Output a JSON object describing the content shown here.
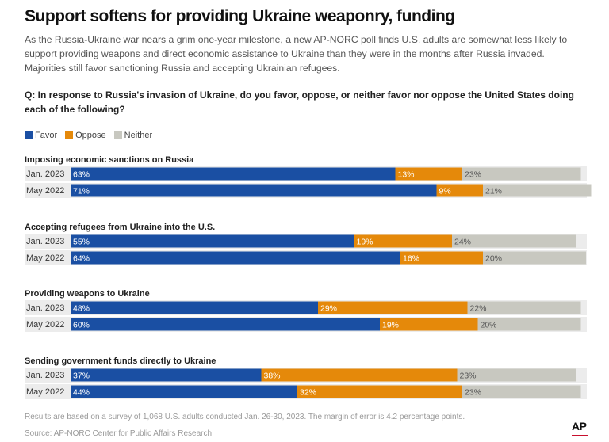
{
  "header": {
    "title": "Support softens for providing Ukraine weaponry, funding",
    "dek": "As the Russia-Ukraine war nears a grim one-year milestone, a new AP-NORC poll finds U.S. adults are somewhat less likely to support providing weapons and direct economic assistance to Ukraine than they were in the months after Russia invaded. Majorities still favor sanctioning Russia and accepting Ukrainian refugees.",
    "question": "Q: In response to Russia's invasion of Ukraine, do you favor, oppose, or neither favor nor oppose the United States doing each of the following?"
  },
  "colors": {
    "favor": "#1a4fa3",
    "oppose": "#e5890a",
    "neither": "#c8c8c0",
    "row_band": "#ececec"
  },
  "chart_data": {
    "type": "bar",
    "stacked": true,
    "orientation": "horizontal",
    "unit": "%",
    "legend": [
      "Favor",
      "Oppose",
      "Neither"
    ],
    "groups": [
      {
        "name": "Imposing economic sanctions on Russia",
        "rows": [
          {
            "label": "Jan. 2023",
            "favor": 63,
            "oppose": 13,
            "neither": 23
          },
          {
            "label": "May 2022",
            "favor": 71,
            "oppose": 9,
            "neither": 21
          }
        ]
      },
      {
        "name": "Accepting refugees from Ukraine into the U.S.",
        "rows": [
          {
            "label": "Jan. 2023",
            "favor": 55,
            "oppose": 19,
            "neither": 24
          },
          {
            "label": "May 2022",
            "favor": 64,
            "oppose": 16,
            "neither": 20
          }
        ]
      },
      {
        "name": "Providing weapons to Ukraine",
        "rows": [
          {
            "label": "Jan. 2023",
            "favor": 48,
            "oppose": 29,
            "neither": 22
          },
          {
            "label": "May 2022",
            "favor": 60,
            "oppose": 19,
            "neither": 20
          }
        ]
      },
      {
        "name": "Sending government funds directly to Ukraine",
        "rows": [
          {
            "label": "Jan. 2023",
            "favor": 37,
            "oppose": 38,
            "neither": 23
          },
          {
            "label": "May 2022",
            "favor": 44,
            "oppose": 32,
            "neither": 23
          }
        ]
      }
    ]
  },
  "footer": {
    "note": "Results are based on a survey of 1,068 U.S. adults conducted Jan. 26-30, 2023. The margin of error is 4.2 percentage points.",
    "source": "Source: AP-NORC Center for Public Affairs Research",
    "logo_text": "AP"
  }
}
